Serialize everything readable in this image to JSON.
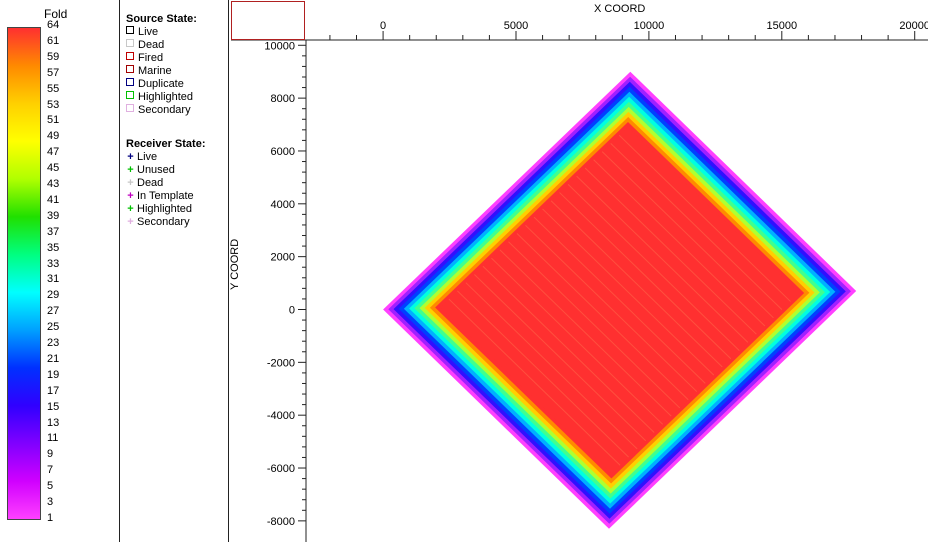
{
  "fold_scale": {
    "title": "Fold",
    "ticks": [
      "64",
      "61",
      "59",
      "57",
      "55",
      "53",
      "51",
      "49",
      "47",
      "45",
      "43",
      "41",
      "39",
      "37",
      "35",
      "33",
      "31",
      "29",
      "27",
      "25",
      "23",
      "21",
      "19",
      "17",
      "15",
      "13",
      "11",
      "9",
      "7",
      "5",
      "3",
      "1"
    ],
    "gradient_colors": [
      "#ff3030",
      "#ff8a00",
      "#ffd000",
      "#ffff00",
      "#b0ff00",
      "#20e000",
      "#00ff80",
      "#00ffff",
      "#00a0ff",
      "#0030ff",
      "#3000ff",
      "#8000ff",
      "#d000ff",
      "#ff40ff"
    ]
  },
  "legend": {
    "source_heading": "Source State:",
    "source_items": [
      {
        "label": "Live",
        "color": "#000000"
      },
      {
        "label": "Dead",
        "color": "#c8c8c8"
      },
      {
        "label": "Fired",
        "color": "#c00000"
      },
      {
        "label": "Marine",
        "color": "#a00000"
      },
      {
        "label": "Duplicate",
        "color": "#000080"
      },
      {
        "label": "Highlighted",
        "color": "#00c000"
      },
      {
        "label": "Secondary",
        "color": "#e0b0e0"
      }
    ],
    "receiver_heading": "Receiver State:",
    "receiver_items": [
      {
        "label": "Live",
        "color": "#000080"
      },
      {
        "label": "Unused",
        "color": "#00c000"
      },
      {
        "label": "Dead",
        "color": "#c8c8c8"
      },
      {
        "label": "In Template",
        "color": "#c000c0"
      },
      {
        "label": "Highlighted",
        "color": "#00c000"
      },
      {
        "label": "Secondary",
        "color": "#e0b0e0"
      }
    ]
  },
  "plot": {
    "x_title": "X COORD",
    "y_title": "Y COORD",
    "x_ticks": [
      0,
      5000,
      10000,
      15000,
      20000
    ],
    "y_ticks": [
      10000,
      8000,
      6000,
      4000,
      2000,
      0,
      -2000,
      -4000,
      -6000,
      -8000
    ],
    "x_range": [
      -2900,
      20500
    ],
    "y_range": [
      -8800,
      10200
    ],
    "fold_map": {
      "corners": [
        [
          9300,
          9000
        ],
        [
          17800,
          700
        ],
        [
          8500,
          -8300
        ],
        [
          0,
          0
        ]
      ],
      "edge_colors": [
        "#ff40ff",
        "#a020ff",
        "#3010ff",
        "#0040ff",
        "#00b0ff",
        "#00ffe0",
        "#40ff90",
        "#b0ff30",
        "#ffd000",
        "#ff8a00",
        "#ff3030"
      ],
      "core_color": "#ff3030"
    }
  }
}
